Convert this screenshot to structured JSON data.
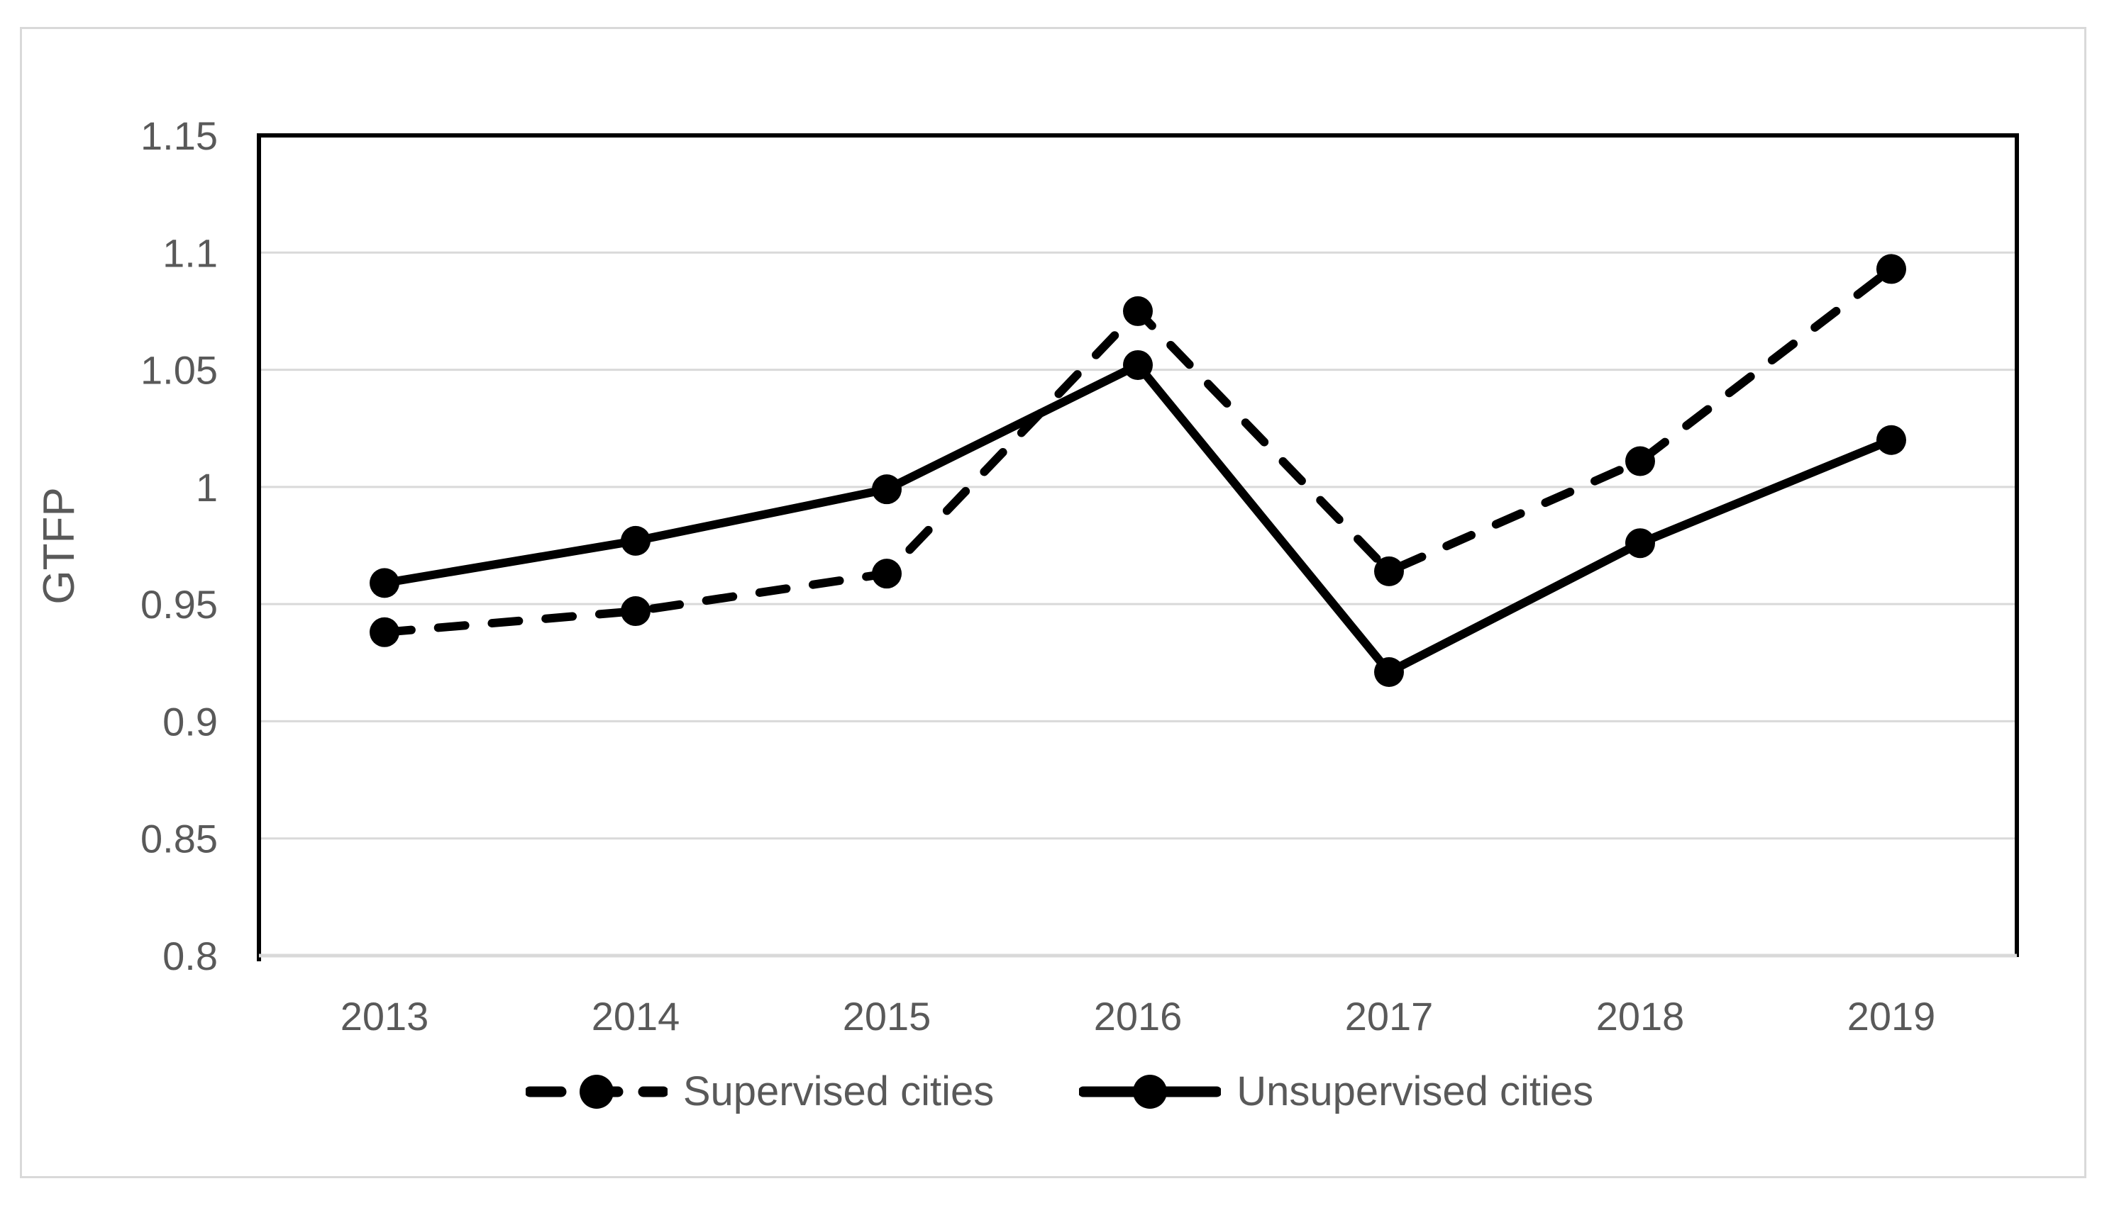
{
  "figure": {
    "background_color": "#ffffff",
    "border_color": "#d9d9d9"
  },
  "chart_data": {
    "type": "line",
    "title": "",
    "xlabel": "",
    "ylabel": "GTFP",
    "categories": [
      "2013",
      "2014",
      "2015",
      "2016",
      "2017",
      "2018",
      "2019"
    ],
    "series": [
      {
        "name": "Supervised cities",
        "style": "dashed",
        "marker": "circle",
        "color": "#000000",
        "values": [
          0.938,
          0.947,
          0.963,
          1.075,
          0.964,
          1.011,
          1.093
        ]
      },
      {
        "name": "Unsupervised cities",
        "style": "solid",
        "marker": "circle",
        "color": "#000000",
        "values": [
          0.959,
          0.977,
          0.999,
          1.052,
          0.921,
          0.976,
          1.02
        ]
      }
    ],
    "ylim": [
      0.8,
      1.15
    ],
    "ytick_step": 0.05,
    "ytick_labels": [
      "1.15",
      "1.1",
      "1.05",
      "1",
      "0.95",
      "0.9",
      "0.85",
      "0.8"
    ],
    "grid": true,
    "grid_color": "#d9d9d9",
    "axis_border_color": "#000000",
    "bottom_axis_color": "#d9d9d9",
    "text_color": "#595959",
    "legend_position": "bottom"
  },
  "legend": {
    "items": [
      {
        "label": "Supervised cities",
        "key": "dashed-line-with-circle-marker"
      },
      {
        "label": "Unsupervised cities",
        "key": "solid-line-with-circle-marker"
      }
    ]
  }
}
